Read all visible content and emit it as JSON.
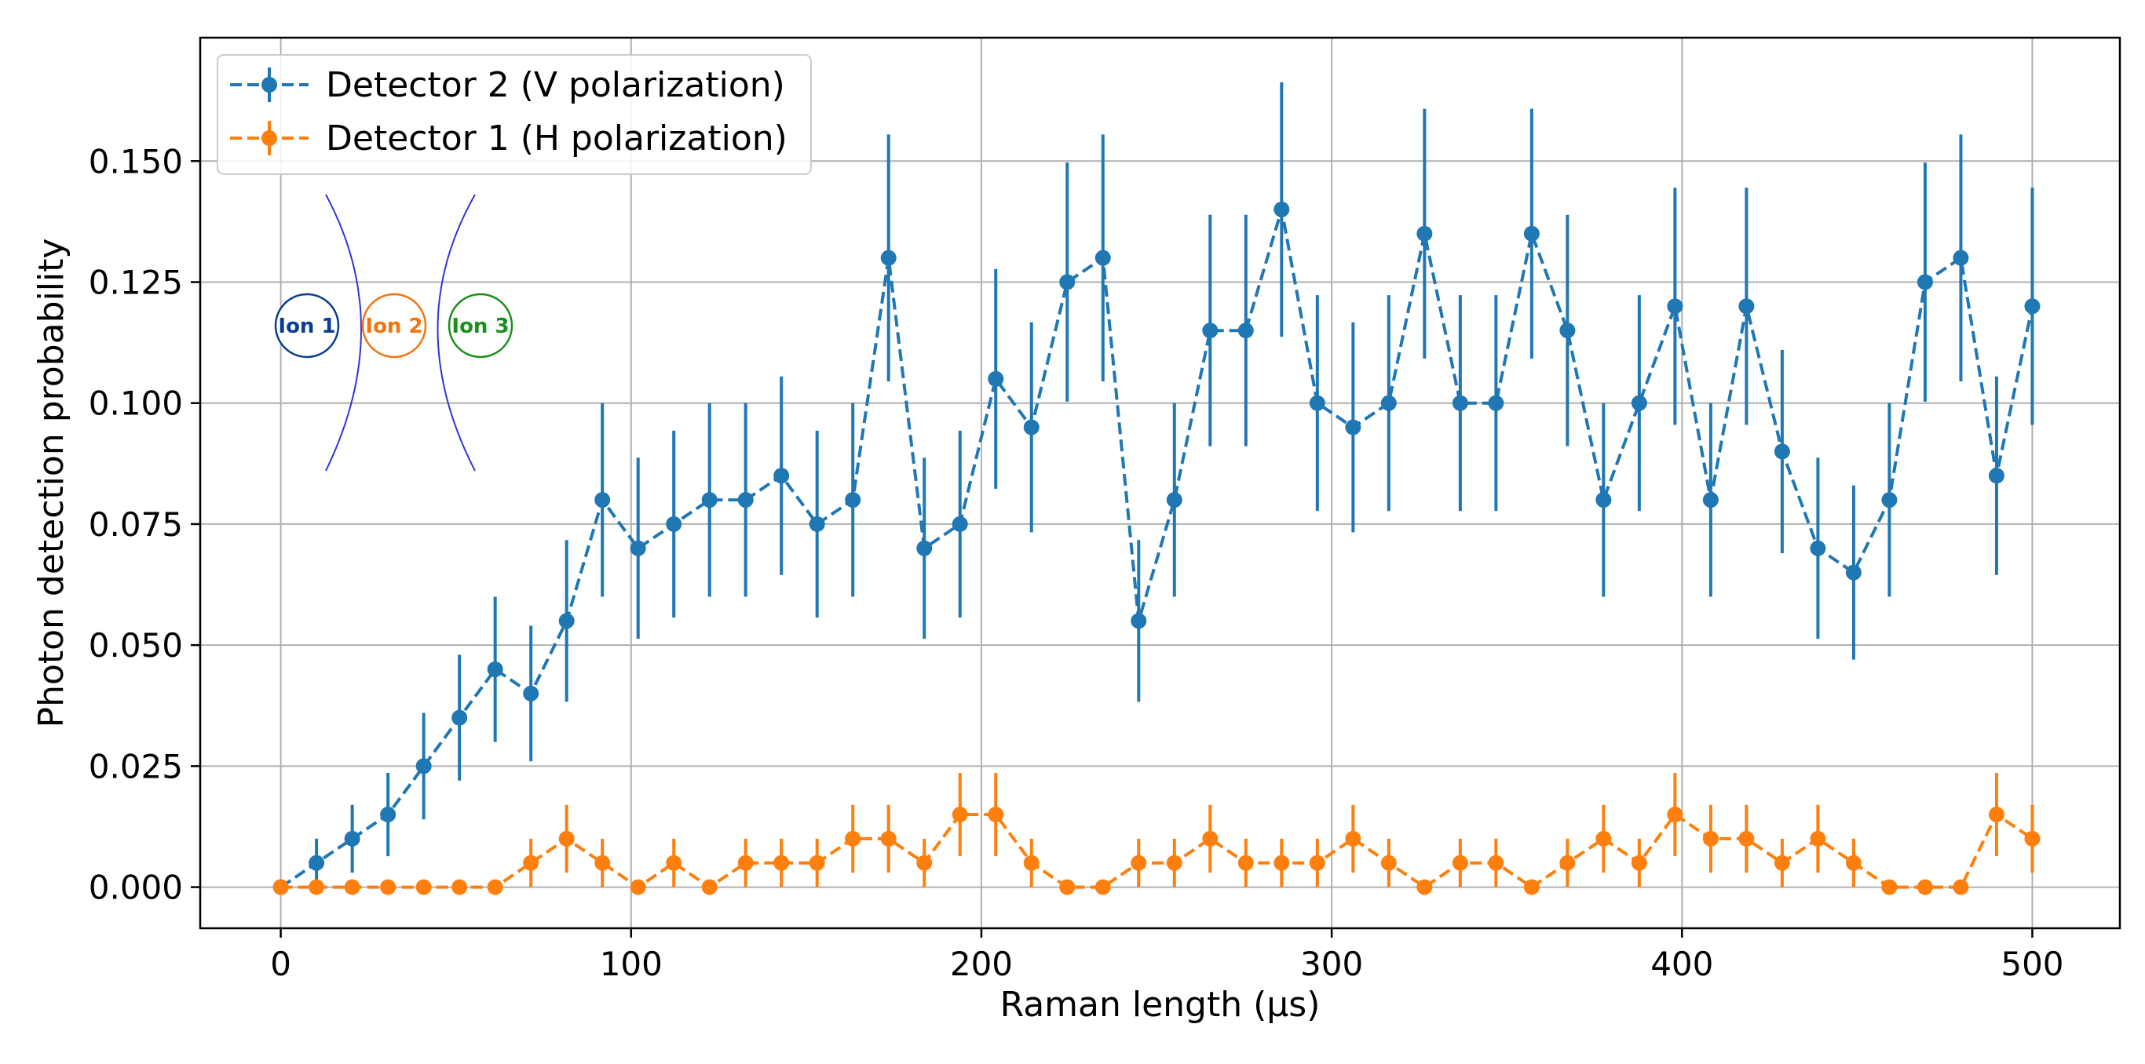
{
  "chart_data": {
    "type": "line",
    "title": "",
    "xlabel": "Raman length (μs)",
    "ylabel": "Photon detection probability",
    "xlim": [
      -23,
      525
    ],
    "ylim": [
      -0.0085,
      0.1755
    ],
    "xticks": [
      0,
      100,
      200,
      300,
      400,
      500
    ],
    "xtick_labels": [
      "0",
      "100",
      "200",
      "300",
      "400",
      "500"
    ],
    "yticks": [
      0.0,
      0.025,
      0.05,
      0.075,
      0.1,
      0.125,
      0.15
    ],
    "ytick_labels": [
      "0.000",
      "0.025",
      "0.050",
      "0.075",
      "0.100",
      "0.125",
      "0.150"
    ],
    "grid": true,
    "legend_position": "top-left",
    "x": [
      0,
      10.2,
      20.4,
      30.6,
      40.8,
      51.0,
      61.2,
      71.4,
      81.6,
      91.8,
      102.0,
      112.2,
      122.4,
      132.7,
      142.9,
      153.1,
      163.3,
      173.5,
      183.7,
      193.9,
      204.1,
      214.3,
      224.5,
      234.7,
      244.9,
      255.1,
      265.3,
      275.5,
      285.7,
      295.9,
      306.1,
      316.3,
      326.5,
      336.7,
      346.9,
      357.1,
      367.3,
      377.6,
      387.8,
      398.0,
      408.2,
      418.4,
      428.6,
      438.8,
      449.0,
      459.2,
      469.4,
      479.6,
      489.8,
      500.0
    ],
    "series": [
      {
        "name": "Detector 2 (V polarization)",
        "color": "#1f77b4",
        "values": [
          0.0,
          0.005,
          0.01,
          0.015,
          0.025,
          0.035,
          0.045,
          0.04,
          0.055,
          0.08,
          0.07,
          0.075,
          0.08,
          0.08,
          0.085,
          0.075,
          0.08,
          0.13,
          0.07,
          0.075,
          0.105,
          0.095,
          0.125,
          0.13,
          0.055,
          0.08,
          0.115,
          0.115,
          0.14,
          0.1,
          0.095,
          0.1,
          0.135,
          0.1,
          0.1,
          0.135,
          0.115,
          0.08,
          0.1,
          0.12,
          0.08,
          0.12,
          0.09,
          0.07,
          0.065,
          0.08,
          0.125,
          0.13,
          0.085,
          0.12
        ],
        "errors": [
          0.0,
          0.005,
          0.007,
          0.0086,
          0.011,
          0.013,
          0.015,
          0.014,
          0.0167,
          0.02,
          0.0187,
          0.0193,
          0.02,
          0.02,
          0.0205,
          0.0193,
          0.02,
          0.0255,
          0.0187,
          0.0193,
          0.0227,
          0.0217,
          0.0247,
          0.0255,
          0.0167,
          0.02,
          0.0239,
          0.0239,
          0.0263,
          0.0223,
          0.0217,
          0.0223,
          0.0258,
          0.0223,
          0.0223,
          0.0258,
          0.0239,
          0.02,
          0.0223,
          0.0245,
          0.02,
          0.0245,
          0.021,
          0.0187,
          0.018,
          0.02,
          0.0247,
          0.0255,
          0.0205,
          0.0245
        ]
      },
      {
        "name": "Detector 1 (H polarization)",
        "color": "#ff7f0e",
        "values": [
          0.0,
          0.0,
          0.0,
          0.0,
          0.0,
          0.0,
          0.0,
          0.005,
          0.01,
          0.005,
          0.0,
          0.005,
          0.0,
          0.005,
          0.005,
          0.005,
          0.01,
          0.01,
          0.005,
          0.015,
          0.015,
          0.005,
          0.0,
          0.0,
          0.005,
          0.005,
          0.01,
          0.005,
          0.005,
          0.005,
          0.01,
          0.005,
          0.0,
          0.005,
          0.005,
          0.0,
          0.005,
          0.01,
          0.005,
          0.015,
          0.01,
          0.01,
          0.005,
          0.01,
          0.005,
          0.0,
          0.0,
          0.0,
          0.015,
          0.01
        ],
        "errors": [
          0.0,
          0.0,
          0.0,
          0.0,
          0.0,
          0.0,
          0.0,
          0.005,
          0.007,
          0.005,
          0.0,
          0.005,
          0.0,
          0.005,
          0.005,
          0.005,
          0.007,
          0.007,
          0.005,
          0.0086,
          0.0086,
          0.005,
          0.0,
          0.0,
          0.005,
          0.005,
          0.007,
          0.005,
          0.005,
          0.005,
          0.007,
          0.005,
          0.0,
          0.005,
          0.005,
          0.0,
          0.005,
          0.007,
          0.005,
          0.0086,
          0.007,
          0.007,
          0.005,
          0.007,
          0.005,
          0.0,
          0.0,
          0.0,
          0.0086,
          0.007
        ]
      }
    ],
    "inset": {
      "ions": [
        {
          "label": "Ion 1",
          "color": "#0a3d91"
        },
        {
          "label": "Ion 2",
          "color": "#f4730d"
        },
        {
          "label": "Ion 3",
          "color": "#1a8f1a"
        }
      ],
      "beam_color": "#3333dd"
    }
  }
}
